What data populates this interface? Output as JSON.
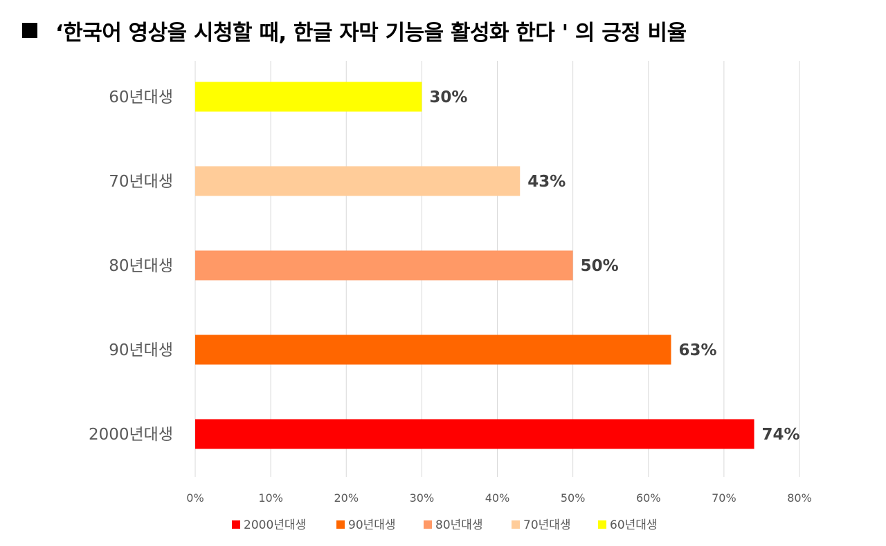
{
  "title": "‘한국어 영상을 시청할 때, 한글 자막 기능을 활성화 한다 ' 의 긍정 비율",
  "chart_data": {
    "type": "bar",
    "orientation": "horizontal",
    "title": "‘한국어 영상을 시청할 때, 한글 자막 기능을 활성화 한다 ' 의 긍정 비율",
    "categories": [
      "60년대생",
      "70년대생",
      "80년대생",
      "90년대생",
      "2000년대생"
    ],
    "values": [
      30,
      43,
      50,
      63,
      74
    ],
    "data_labels": [
      "30%",
      "43%",
      "50%",
      "63%",
      "74%"
    ],
    "colors": [
      "#FFFF00",
      "#FFCC99",
      "#FF9966",
      "#FF6600",
      "#FF0000"
    ],
    "xlim": [
      0,
      80
    ],
    "x_ticks": [
      0,
      10,
      20,
      30,
      40,
      50,
      60,
      70,
      80
    ],
    "x_tick_labels": [
      "0%",
      "10%",
      "20%",
      "30%",
      "40%",
      "50%",
      "60%",
      "70%",
      "80%"
    ],
    "grid": true,
    "legend": {
      "placement": "bottom",
      "entries": [
        {
          "label": "2000년대생",
          "color": "#FF0000"
        },
        {
          "label": "90년대생",
          "color": "#FF6600"
        },
        {
          "label": "80년대생",
          "color": "#FF9966"
        },
        {
          "label": "70년대생",
          "color": "#FFCC99"
        },
        {
          "label": "60년대생",
          "color": "#FFFF00"
        }
      ]
    }
  }
}
